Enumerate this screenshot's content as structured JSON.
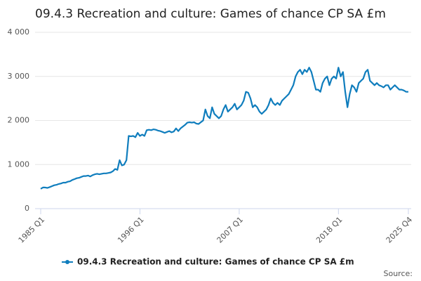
{
  "chart_data": {
    "type": "line",
    "title": "09.4.3 Recreation and culture: Games of chance CP SA £m",
    "source": "Source:",
    "categories": [
      "1985 Q1",
      null,
      null,
      null,
      null,
      null,
      null,
      null,
      null,
      null,
      null,
      null,
      null,
      null,
      null,
      null,
      null,
      null,
      null,
      null,
      null,
      null,
      null,
      null,
      null,
      null,
      null,
      null,
      null,
      null,
      null,
      null,
      null,
      null,
      null,
      null,
      null,
      null,
      null,
      null,
      null,
      null,
      null,
      null,
      "1996 Q1",
      null,
      null,
      null,
      null,
      null,
      null,
      null,
      null,
      null,
      null,
      null,
      null,
      null,
      null,
      null,
      null,
      null,
      null,
      null,
      null,
      null,
      null,
      null,
      null,
      null,
      null,
      null,
      null,
      null,
      null,
      null,
      null,
      null,
      null,
      null,
      null,
      null,
      null,
      null,
      null,
      null,
      null,
      null,
      "2007 Q1",
      null,
      null,
      null,
      null,
      null,
      null,
      null,
      null,
      null,
      null,
      null,
      null,
      null,
      null,
      null,
      null,
      null,
      null,
      null,
      null,
      null,
      null,
      null,
      null,
      null,
      null,
      null,
      null,
      null,
      null,
      null,
      null,
      null,
      null,
      null,
      null,
      null,
      null,
      null,
      null,
      null,
      null,
      null,
      "2018 Q1",
      null,
      null,
      null,
      null,
      null,
      null,
      null,
      null,
      null,
      null,
      null,
      null,
      null,
      null,
      null,
      null,
      null,
      null,
      null,
      null,
      null,
      null,
      null,
      null,
      null,
      null,
      null,
      null,
      null,
      null,
      "2025 Q4"
    ],
    "series": [
      {
        "name": "09.4.3 Recreation and culture: Games of chance CP SA £m",
        "color": "#0f7dbd",
        "values": [
          450,
          480,
          480,
          470,
          490,
          510,
          530,
          540,
          560,
          570,
          590,
          590,
          610,
          620,
          650,
          670,
          690,
          700,
          720,
          740,
          740,
          750,
          730,
          760,
          780,
          790,
          780,
          790,
          800,
          800,
          810,
          820,
          850,
          900,
          880,
          1100,
          980,
          1000,
          1100,
          1650,
          1640,
          1650,
          1620,
          1720,
          1650,
          1680,
          1650,
          1780,
          1790,
          1780,
          1800,
          1790,
          1770,
          1760,
          1740,
          1720,
          1740,
          1760,
          1730,
          1750,
          1820,
          1760,
          1820,
          1860,
          1900,
          1950,
          1960,
          1950,
          1960,
          1930,
          1920,
          1960,
          2000,
          2250,
          2100,
          2050,
          2300,
          2150,
          2100,
          2050,
          2100,
          2250,
          2350,
          2200,
          2250,
          2300,
          2380,
          2250,
          2300,
          2350,
          2450,
          2650,
          2630,
          2500,
          2300,
          2350,
          2300,
          2200,
          2150,
          2200,
          2250,
          2350,
          2500,
          2400,
          2350,
          2400,
          2350,
          2450,
          2500,
          2550,
          2600,
          2700,
          2800,
          3000,
          3100,
          3150,
          3050,
          3150,
          3100,
          3200,
          3100,
          2900,
          2700,
          2700,
          2650,
          2850,
          2950,
          3000,
          2800,
          2950,
          3000,
          2950,
          3200,
          3000,
          3100,
          2650,
          2300,
          2600,
          2800,
          2750,
          2650,
          2850,
          2900,
          2950,
          3100,
          3150,
          2900,
          2850,
          2800,
          2850,
          2800,
          2780,
          2750,
          2800,
          2800,
          2700,
          2750,
          2800,
          2750,
          2700,
          2700,
          2680,
          2650,
          2650
        ]
      }
    ],
    "ylim": [
      0,
      4000
    ],
    "yticks": [
      0,
      {
        "value": 1000,
        "label": "1 000"
      },
      {
        "value": 2000,
        "label": "2 000"
      },
      {
        "value": 3000,
        "label": "3 000"
      },
      {
        "value": 4000,
        "label": "4 000"
      }
    ],
    "grid": true
  }
}
